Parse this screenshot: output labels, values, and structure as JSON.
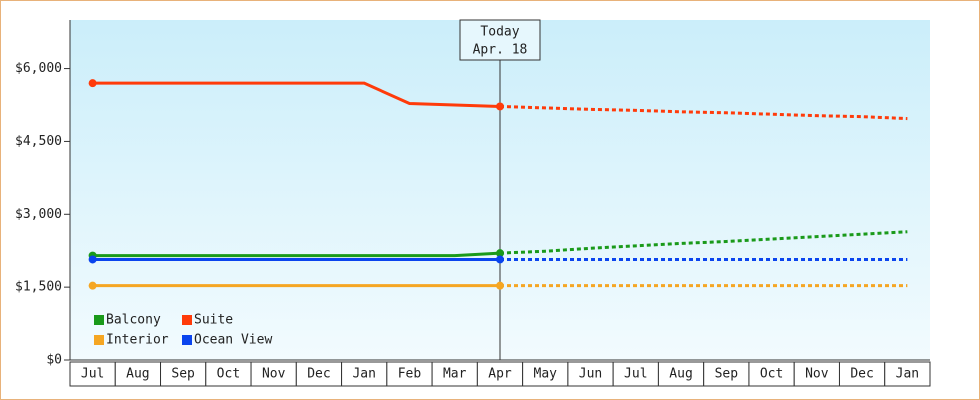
{
  "chart_data": {
    "type": "line",
    "categories": [
      "Jul",
      "Aug",
      "Sep",
      "Oct",
      "Nov",
      "Dec",
      "Jan",
      "Feb",
      "Mar",
      "Apr",
      "May",
      "Jun",
      "Jul",
      "Aug",
      "Sep",
      "Oct",
      "Nov",
      "Dec",
      "Jan"
    ],
    "today": {
      "label": "Today",
      "date": "Apr. 18",
      "category_index": 9
    },
    "series": [
      {
        "name": "Balcony",
        "color": "#1a9a1a",
        "values": [
          2150,
          2150,
          2150,
          2150,
          2150,
          2150,
          2150,
          2150,
          2150,
          2200,
          2240,
          2300,
          2350,
          2400,
          2440,
          2490,
          2540,
          2590,
          2640
        ]
      },
      {
        "name": "Suite",
        "color": "#ff3b0a",
        "values": [
          5700,
          5700,
          5700,
          5700,
          5700,
          5700,
          5700,
          5280,
          5250,
          5220,
          5190,
          5160,
          5140,
          5110,
          5090,
          5060,
          5030,
          5010,
          4970
        ]
      },
      {
        "name": "Interior",
        "color": "#f5a623",
        "values": [
          1530,
          1530,
          1530,
          1530,
          1530,
          1530,
          1530,
          1530,
          1530,
          1530,
          1530,
          1530,
          1530,
          1530,
          1530,
          1530,
          1530,
          1530,
          1530
        ]
      },
      {
        "name": "Ocean View",
        "color": "#0a44ee",
        "values": [
          2070,
          2070,
          2070,
          2070,
          2070,
          2070,
          2070,
          2070,
          2070,
          2070,
          2070,
          2070,
          2070,
          2070,
          2070,
          2070,
          2070,
          2070,
          2070
        ]
      }
    ],
    "ylim": [
      0,
      7000
    ],
    "yticks": [
      {
        "value": 0,
        "label": "$0"
      },
      {
        "value": 1500,
        "label": "$1,500"
      },
      {
        "value": 3000,
        "label": "$3,000"
      },
      {
        "value": 4500,
        "label": "$4,500"
      },
      {
        "value": 6000,
        "label": "$6,000"
      }
    ]
  }
}
